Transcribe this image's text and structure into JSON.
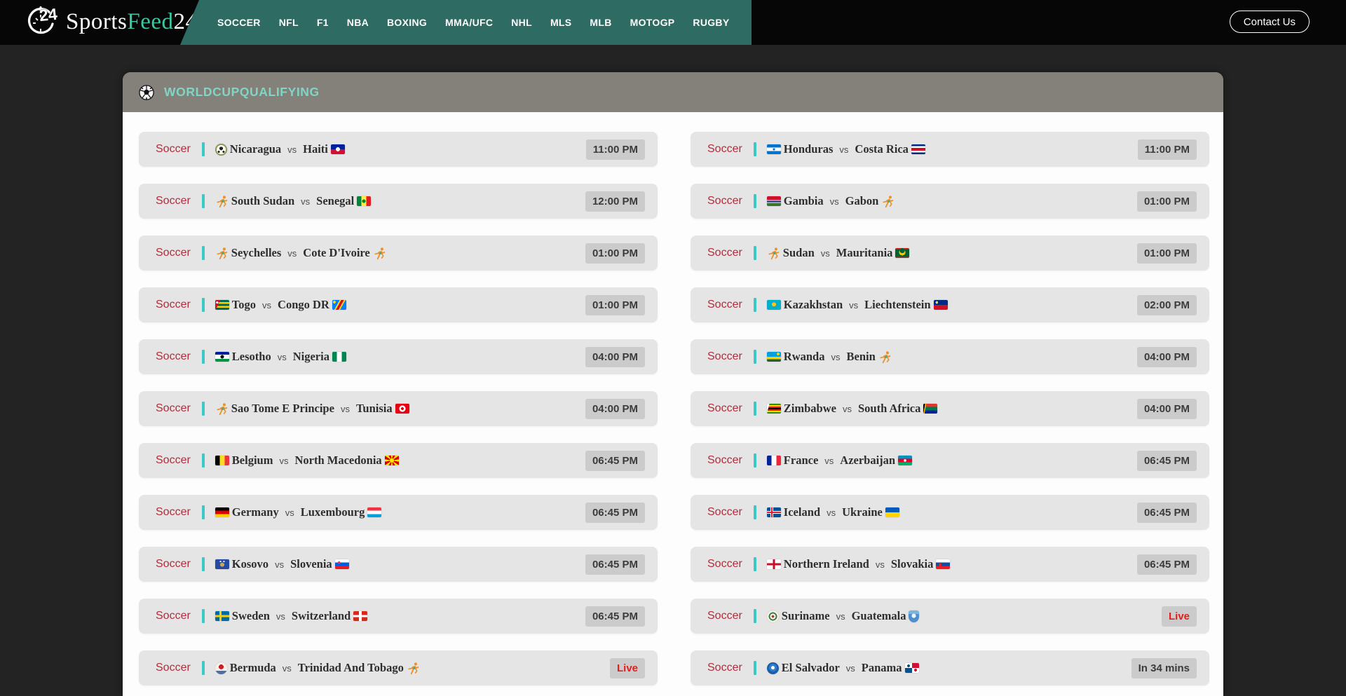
{
  "brand": {
    "sports": "Sports",
    "feed": "Feed",
    "num": "24"
  },
  "nav": {
    "items": [
      "SOCCER",
      "NFL",
      "F1",
      "NBA",
      "BOXING",
      "MMA/UFC",
      "NHL",
      "MLS",
      "MLB",
      "MOTOGP",
      "RUGBY"
    ]
  },
  "header": {
    "contact_label": "Contact Us"
  },
  "league": {
    "title": "WORLDCUPQUALIFYING"
  },
  "labels": {
    "sport": "Soccer",
    "vs": "vs"
  },
  "colors": {
    "page_bg": "#232323",
    "header_bg": "#060606",
    "nav_bg": "#2d6b63",
    "panel_bg": "#fdfdfd",
    "panel_header_bg": "#84807a",
    "title_mint": "#7fd6c4",
    "row_bg": "#e5e5e5",
    "sport_red": "#b32c3c",
    "divider_teal": "#3cc8c4",
    "badge_bg": "#cbcbcb",
    "badge_text": "#3b3b3b",
    "live_red": "#e51e19",
    "brand_accent": "#3cc7a0"
  },
  "matches": {
    "columns": [
      [
        {
          "home": "Nicaragua",
          "home_flag": "nicaragua",
          "away": "Haiti",
          "away_flag": "haiti",
          "status": {
            "text": "11:00 PM",
            "kind": "time"
          }
        },
        {
          "home": "South Sudan",
          "home_flag": "south-sudan",
          "away": "Senegal",
          "away_flag": "senegal",
          "status": {
            "text": "12:00 PM",
            "kind": "time"
          }
        },
        {
          "home": "Seychelles",
          "home_flag": "seychelles",
          "away": "Cote D'Ivoire",
          "away_flag": "cote-divoire",
          "status": {
            "text": "01:00 PM",
            "kind": "time"
          }
        },
        {
          "home": "Togo",
          "home_flag": "togo",
          "away": "Congo DR",
          "away_flag": "congo-dr",
          "status": {
            "text": "01:00 PM",
            "kind": "time"
          }
        },
        {
          "home": "Lesotho",
          "home_flag": "lesotho",
          "away": "Nigeria",
          "away_flag": "nigeria",
          "status": {
            "text": "04:00 PM",
            "kind": "time"
          }
        },
        {
          "home": "Sao Tome E Principe",
          "home_flag": "sao-tome-e-principe",
          "away": "Tunisia",
          "away_flag": "tunisia",
          "status": {
            "text": "04:00 PM",
            "kind": "time"
          }
        },
        {
          "home": "Belgium",
          "home_flag": "belgium",
          "away": "North Macedonia",
          "away_flag": "north-macedonia",
          "status": {
            "text": "06:45 PM",
            "kind": "time"
          }
        },
        {
          "home": "Germany",
          "home_flag": "germany",
          "away": "Luxembourg",
          "away_flag": "luxembourg",
          "status": {
            "text": "06:45 PM",
            "kind": "time"
          }
        },
        {
          "home": "Kosovo",
          "home_flag": "kosovo",
          "away": "Slovenia",
          "away_flag": "slovenia",
          "status": {
            "text": "06:45 PM",
            "kind": "time"
          }
        },
        {
          "home": "Sweden",
          "home_flag": "sweden",
          "away": "Switzerland",
          "away_flag": "switzerland",
          "status": {
            "text": "06:45 PM",
            "kind": "time"
          }
        },
        {
          "home": "Bermuda",
          "home_flag": "bermuda",
          "away": "Trinidad And Tobago",
          "away_flag": "trinidad-and-tobago",
          "status": {
            "text": "Live",
            "kind": "live"
          }
        }
      ],
      [
        {
          "home": "Honduras",
          "home_flag": "honduras",
          "away": "Costa Rica",
          "away_flag": "costa-rica",
          "status": {
            "text": "11:00 PM",
            "kind": "time"
          }
        },
        {
          "home": "Gambia",
          "home_flag": "gambia",
          "away": "Gabon",
          "away_flag": "gabon",
          "status": {
            "text": "01:00 PM",
            "kind": "time"
          }
        },
        {
          "home": "Sudan",
          "home_flag": "sudan",
          "away": "Mauritania",
          "away_flag": "mauritania",
          "status": {
            "text": "01:00 PM",
            "kind": "time"
          }
        },
        {
          "home": "Kazakhstan",
          "home_flag": "kazakhstan",
          "away": "Liechtenstein",
          "away_flag": "liechtenstein",
          "status": {
            "text": "02:00 PM",
            "kind": "time"
          }
        },
        {
          "home": "Rwanda",
          "home_flag": "rwanda",
          "away": "Benin",
          "away_flag": "benin",
          "status": {
            "text": "04:00 PM",
            "kind": "time"
          }
        },
        {
          "home": "Zimbabwe",
          "home_flag": "zimbabwe",
          "away": "South Africa",
          "away_flag": "south-africa",
          "status": {
            "text": "04:00 PM",
            "kind": "time"
          }
        },
        {
          "home": "France",
          "home_flag": "france",
          "away": "Azerbaijan",
          "away_flag": "azerbaijan",
          "status": {
            "text": "06:45 PM",
            "kind": "time"
          }
        },
        {
          "home": "Iceland",
          "home_flag": "iceland",
          "away": "Ukraine",
          "away_flag": "ukraine",
          "status": {
            "text": "06:45 PM",
            "kind": "time"
          }
        },
        {
          "home": "Northern Ireland",
          "home_flag": "northern-ireland",
          "away": "Slovakia",
          "away_flag": "slovakia",
          "status": {
            "text": "06:45 PM",
            "kind": "time"
          }
        },
        {
          "home": "Suriname",
          "home_flag": "suriname",
          "away": "Guatemala",
          "away_flag": "guatemala",
          "status": {
            "text": "Live",
            "kind": "live"
          }
        },
        {
          "home": "El Salvador",
          "home_flag": "el-salvador",
          "away": "Panama",
          "away_flag": "panama",
          "status": {
            "text": "In 34 mins",
            "kind": "soon"
          }
        }
      ]
    ]
  },
  "flags": {
    "nicaragua": {
      "shape": "round",
      "bg": "radial-gradient(circle at 50% 40%, #222 0 2.5px, rgba(0,0,0,0) 2.5px), radial-gradient(circle at 30% 68%, #222 0 1.5px, rgba(0,0,0,0) 1.5px), radial-gradient(circle at 70% 68%, #222 0 1.5px, rgba(0,0,0,0) 1.5px), radial-gradient(circle at 50% 50%, #fdfaf1 0 6.5px, #8a9a5b 6.5px)"
    },
    "haiti": {
      "bg": "radial-gradient(circle at 50% 50%, #f5f5f5 0 3px, rgba(0,0,0,0) 3px), linear-gradient(to bottom, #00209f 0 50%, #d21034 50%)"
    },
    "south-sudan": {
      "icon": "runner"
    },
    "senegal": {
      "bg": "radial-gradient(circle at 50% 50%, #00853f 0 2.5px, rgba(0,0,0,0) 2.5px), linear-gradient(to right, #00853f 0 33%, #fdef42 33% 67%, #e31b23 67%)"
    },
    "seychelles": {
      "icon": "runner"
    },
    "cote-divoire": {
      "icon": "runner"
    },
    "togo": {
      "bg": "radial-gradient(circle at 14% 26%, #fff 0 1.6px, rgba(0,0,0,0) 1.6px), linear-gradient(115deg, #d21034 0 27%, rgba(0,0,0,0) 27%), repeating-linear-gradient(to bottom, #006a4e 0 2.8px, #ffce00 2.8px 5.6px)"
    },
    "congo-dr": {
      "bg": "radial-gradient(circle at 15% 22%, #f7d618 0 2px, rgba(0,0,0,0) 2px), linear-gradient(119deg, #007fff 0 38%, #f7d618 38% 46%, #ce1021 46% 60%, #f7d618 60% 68%, #007fff 68%)"
    },
    "lesotho": {
      "bg": "radial-gradient(circle at 50% 50%, #111 0 2.5px, rgba(0,0,0,0) 2.5px), linear-gradient(to bottom, #00209f 0 30%, #fff 30% 70%, #009543 70%)"
    },
    "nigeria": {
      "bg": "linear-gradient(to right, #008751 0 33%, #fff 33% 67%, #008751 67%)"
    },
    "sao-tome-e-principe": {
      "icon": "runner"
    },
    "tunisia": {
      "bg": "radial-gradient(circle at 50% 50%, #e70013 0 2px, #fff 2px 4.5px, #e70013 4.5px)"
    },
    "belgium": {
      "bg": "linear-gradient(to right, #000 0 33%, #fdda24 33% 67%, #ef3340 67%)"
    },
    "north-macedonia": {
      "bg": "radial-gradient(circle at 50% 50%, #ffe600 0 3px, rgba(0,0,0,0) 3px), conic-gradient(from 10deg, #d20000 0 25deg, #ffe600 25deg 45deg, #d20000 45deg 70deg, #ffe600 70deg 90deg, #d20000 90deg 115deg, #ffe600 115deg 135deg, #d20000 135deg 160deg, #ffe600 160deg 180deg, #d20000 180deg 205deg, #ffe600 205deg 225deg, #d20000 225deg 250deg, #ffe600 250deg 270deg, #d20000 270deg 295deg, #ffe600 295deg 315deg, #d20000 315deg 340deg, #ffe600 340deg 360deg)"
    },
    "germany": {
      "bg": "linear-gradient(to bottom, #000 0 33%, #dd0000 33% 67%, #ffce00 67%)"
    },
    "luxembourg": {
      "bg": "linear-gradient(to bottom, #ef3340 0 33%, #fff 33% 67%, #00a3e0 67%)"
    },
    "kosovo": {
      "bg": "radial-gradient(circle at 38% 22%, #fff 0 1.1px, rgba(0,0,0,0) 1.1px), radial-gradient(circle at 62% 22%, #fff 0 1.1px, rgba(0,0,0,0) 1.1px), radial-gradient(circle at 50% 55%, #d0a650 0 3px, rgba(0,0,0,0) 3px), linear-gradient(#244aa5, #244aa5)"
    },
    "slovenia": {
      "bg": "radial-gradient(circle at 28% 33%, #ee3344 0 1.8px, rgba(0,0,0,0) 1.8px), linear-gradient(to bottom, #fff 0 33%, #005ce5 33% 67%, #ed1c24 67%)"
    },
    "sweden": {
      "bg": "linear-gradient(to right, rgba(0,0,0,0) 0 30%, #fecc02 30% 44%, rgba(0,0,0,0) 44%), linear-gradient(to bottom, #006aa7 0 38%, #fecc02 38% 62%, #006aa7 62%)"
    },
    "switzerland": {
      "bg": "linear-gradient(to right, rgba(0,0,0,0) 0 40%, #fff 40% 60%, rgba(0,0,0,0) 60%), linear-gradient(to bottom, #da291c 0 40%, #fff 40% 60%, #da291c 60%)"
    },
    "bermuda": {
      "shape": "round",
      "bg": "radial-gradient(circle at 50% 38%, #c22230 0 3.5px, rgba(0,0,0,0) 3.5px), linear-gradient(to bottom, #f3f0e7 0 72%, #4a6fae 72%)"
    },
    "trinidad-and-tobago": {
      "icon": "runner"
    },
    "honduras": {
      "bg": "radial-gradient(circle at 50% 50%, #0073cf 0 1.5px, rgba(0,0,0,0) 1.5px), linear-gradient(to bottom, #0073cf 0 33%, #fff 33% 67%, #0073cf 67%)"
    },
    "costa-rica": {
      "bg": "linear-gradient(to bottom, #002b7f 0 18%, #fff 18% 37%, #ce1126 37% 63%, #fff 63% 82%, #002b7f 82%)"
    },
    "gambia": {
      "bg": "linear-gradient(to bottom, #ce1126 0 38%, #fff 38% 45%, #0c1c8c 45% 62%, #fff 62% 69%, #3a7728 69%)"
    },
    "gabon": {
      "icon": "runner"
    },
    "sudan": {
      "icon": "runner"
    },
    "mauritania": {
      "bg": "radial-gradient(circle at 50% 26%, #006233 0 3.5px, rgba(0,0,0,0) 3.5px), radial-gradient(circle at 50% 42%, #ffc400 0 4.5px, rgba(0,0,0,0) 4.5px), linear-gradient(to bottom, #d01c1f 0 12%, #006233 12% 88%, #d01c1f 88%)"
    },
    "kazakhstan": {
      "bg": "radial-gradient(circle at 50% 45%, #fec50c 0 3px, rgba(0,0,0,0) 3px), linear-gradient(#00afca, #00afca)"
    },
    "liechtenstein": {
      "bg": "radial-gradient(circle at 22% 25%, #ffd83d 0 1.8px, rgba(0,0,0,0) 1.8px), linear-gradient(to bottom, #002b7f 0 50%, #ce1126 50%)"
    },
    "rwanda": {
      "bg": "radial-gradient(circle at 80% 22%, #fad201 0 2px, rgba(0,0,0,0) 2px), linear-gradient(to bottom, #00a1de 0 50%, #fad201 50% 75%, #20603d 75%)"
    },
    "benin": {
      "icon": "runner"
    },
    "zimbabwe": {
      "bg": "linear-gradient(105deg, #fff 0 15%, rgba(0,0,0,0) 15%), linear-gradient(to bottom, #319208 0 14%, #ffd200 14% 28%, #de2010 28% 42%, #000 42% 58%, #de2010 58% 72%, #ffd200 72% 86%, #319208 86%)"
    },
    "south-africa": {
      "bg": "linear-gradient(100deg, #000 0 12%, #ffb612 12% 19%, rgba(0,0,0,0) 19%), linear-gradient(to bottom, rgba(0,0,0,0) 0 33%, #007a4d 33% 67%, rgba(0,0,0,0) 67%), linear-gradient(to bottom, #de3831 0 50%, #002395 50%)"
    },
    "france": {
      "bg": "linear-gradient(to right, #002395 0 33%, #fff 33% 67%, #ed2939 67%)"
    },
    "azerbaijan": {
      "bg": "radial-gradient(circle at 50% 50%, #fff 0 1.8px, rgba(0,0,0,0) 1.8px), linear-gradient(to bottom, #0092bc 0 33%, #e4002b 33% 67%, #00af66 67%)"
    },
    "iceland": {
      "bg": "linear-gradient(to right, rgba(0,0,0,0) 0 30%, #dc1e35 30% 40%, rgba(0,0,0,0) 40%), linear-gradient(to bottom, rgba(0,0,0,0) 0 42%, #dc1e35 42% 58%, rgba(0,0,0,0) 58%), linear-gradient(to right, rgba(0,0,0,0) 0 26%, #fff 26% 44%, rgba(0,0,0,0) 44%), linear-gradient(to bottom, rgba(0,0,0,0) 0 36%, #fff 36% 64%, rgba(0,0,0,0) 64%), linear-gradient(#02529c, #02529c)"
    },
    "ukraine": {
      "bg": "linear-gradient(to bottom, #005bbb 0 50%, #ffd500 50%)"
    },
    "northern-ireland": {
      "bg": "linear-gradient(to right, rgba(0,0,0,0) 0 42%, #c8102e 42% 58%, rgba(0,0,0,0) 58%), linear-gradient(to bottom, #fff 0 38%, #c8102e 38% 62%, #fff 62%)"
    },
    "slovakia": {
      "bg": "radial-gradient(circle at 30% 55%, #ee1c25 0 2px, rgba(0,0,0,0) 2px), linear-gradient(to bottom, #fff 0 33%, #0b4ea2 33% 67%, #ee1c25 67%)"
    },
    "suriname": {
      "shape": "round",
      "bg": "radial-gradient(circle at 50% 50%, #c0392b 0 1.8px, #f2efe6 1.8px 4px, #377e3f 4px 6px, #f2efe6 6px)"
    },
    "guatemala": {
      "shape": "shield",
      "bg": "radial-gradient(circle at 50% 45%, #f0f6fb 0 3px, rgba(0,0,0,0) 3px), linear-gradient(to bottom, #79b5e3 0 30%, #4f8fcc 30%)"
    },
    "el-salvador": {
      "shape": "round",
      "bg": "radial-gradient(circle at 50% 45%, #fff 0 2.5px, #2f7fd0 2.5px 5.5px, #1b5fa8 5.5px)"
    },
    "panama": {
      "bg": "radial-gradient(circle at 25% 28%, #005293 0 2px, rgba(0,0,0,0) 2px), radial-gradient(circle at 75% 72%, #d21034 0 2px, rgba(0,0,0,0) 2px), conic-gradient(#d21034 0 90deg, #fff 90deg 180deg, #005293 180deg 270deg, #fff 270deg 360deg)"
    }
  }
}
